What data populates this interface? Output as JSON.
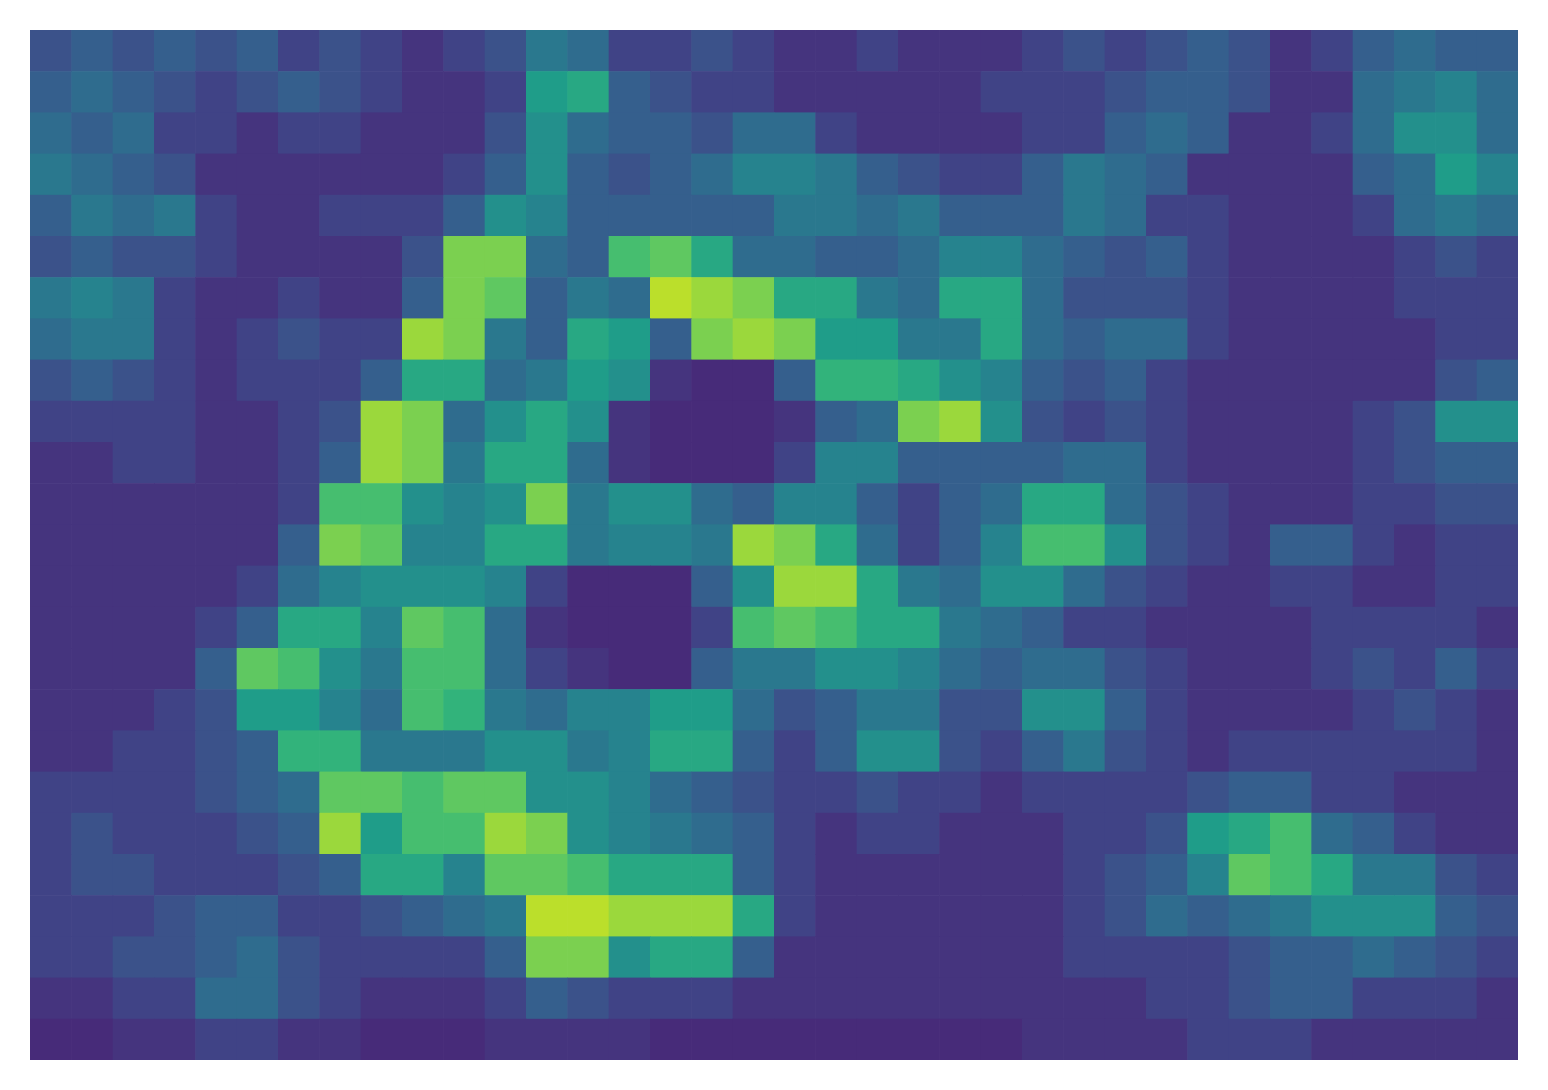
{
  "chart_data": {
    "type": "heatmap",
    "tick_labels": false,
    "color_range": [
      0,
      1
    ],
    "cells": [
      [
        0.25,
        0.3,
        0.25,
        0.3,
        0.25,
        0.3,
        0.2,
        0.25,
        0.2,
        0.15,
        0.2,
        0.25,
        0.4,
        0.35,
        0.2,
        0.2,
        0.25,
        0.2,
        0.15,
        0.15,
        0.2,
        0.15,
        0.15,
        0.15,
        0.2,
        0.25,
        0.2,
        0.25,
        0.3,
        0.25,
        0.15,
        0.2,
        0.3,
        0.35,
        0.3,
        0.3
      ],
      [
        0.3,
        0.35,
        0.3,
        0.25,
        0.2,
        0.25,
        0.3,
        0.25,
        0.2,
        0.15,
        0.15,
        0.2,
        0.55,
        0.6,
        0.3,
        0.25,
        0.2,
        0.2,
        0.15,
        0.15,
        0.15,
        0.15,
        0.15,
        0.2,
        0.2,
        0.2,
        0.25,
        0.3,
        0.3,
        0.25,
        0.15,
        0.15,
        0.35,
        0.4,
        0.45,
        0.35
      ],
      [
        0.35,
        0.3,
        0.35,
        0.2,
        0.2,
        0.15,
        0.2,
        0.2,
        0.15,
        0.15,
        0.15,
        0.25,
        0.5,
        0.35,
        0.3,
        0.3,
        0.25,
        0.35,
        0.35,
        0.2,
        0.15,
        0.15,
        0.15,
        0.15,
        0.2,
        0.2,
        0.3,
        0.35,
        0.3,
        0.15,
        0.15,
        0.2,
        0.35,
        0.5,
        0.5,
        0.35
      ],
      [
        0.4,
        0.35,
        0.3,
        0.25,
        0.15,
        0.15,
        0.15,
        0.15,
        0.15,
        0.15,
        0.2,
        0.3,
        0.5,
        0.3,
        0.25,
        0.3,
        0.35,
        0.45,
        0.45,
        0.4,
        0.3,
        0.25,
        0.2,
        0.2,
        0.3,
        0.4,
        0.35,
        0.3,
        0.15,
        0.15,
        0.15,
        0.15,
        0.3,
        0.35,
        0.55,
        0.45
      ],
      [
        0.3,
        0.4,
        0.35,
        0.4,
        0.2,
        0.15,
        0.15,
        0.2,
        0.2,
        0.2,
        0.3,
        0.5,
        0.45,
        0.3,
        0.3,
        0.3,
        0.3,
        0.3,
        0.4,
        0.4,
        0.35,
        0.4,
        0.3,
        0.3,
        0.3,
        0.4,
        0.35,
        0.2,
        0.2,
        0.15,
        0.15,
        0.15,
        0.2,
        0.35,
        0.4,
        0.35
      ],
      [
        0.25,
        0.3,
        0.25,
        0.25,
        0.2,
        0.15,
        0.15,
        0.15,
        0.15,
        0.25,
        0.8,
        0.8,
        0.35,
        0.3,
        0.7,
        0.75,
        0.6,
        0.35,
        0.35,
        0.3,
        0.3,
        0.35,
        0.45,
        0.45,
        0.35,
        0.3,
        0.25,
        0.3,
        0.2,
        0.15,
        0.15,
        0.15,
        0.15,
        0.2,
        0.25,
        0.2
      ],
      [
        0.4,
        0.45,
        0.4,
        0.2,
        0.15,
        0.15,
        0.2,
        0.15,
        0.15,
        0.3,
        0.8,
        0.75,
        0.3,
        0.4,
        0.35,
        0.9,
        0.85,
        0.8,
        0.6,
        0.6,
        0.4,
        0.35,
        0.6,
        0.6,
        0.35,
        0.25,
        0.25,
        0.25,
        0.2,
        0.15,
        0.15,
        0.15,
        0.15,
        0.2,
        0.2,
        0.2
      ],
      [
        0.35,
        0.4,
        0.4,
        0.2,
        0.15,
        0.2,
        0.25,
        0.2,
        0.2,
        0.85,
        0.8,
        0.4,
        0.3,
        0.6,
        0.55,
        0.3,
        0.8,
        0.85,
        0.8,
        0.55,
        0.55,
        0.4,
        0.4,
        0.6,
        0.35,
        0.3,
        0.35,
        0.35,
        0.2,
        0.15,
        0.15,
        0.15,
        0.15,
        0.15,
        0.2,
        0.2
      ],
      [
        0.25,
        0.3,
        0.25,
        0.2,
        0.15,
        0.2,
        0.2,
        0.2,
        0.3,
        0.6,
        0.6,
        0.35,
        0.4,
        0.55,
        0.5,
        0.15,
        0.12,
        0.12,
        0.3,
        0.65,
        0.65,
        0.6,
        0.5,
        0.45,
        0.3,
        0.25,
        0.3,
        0.2,
        0.15,
        0.15,
        0.15,
        0.15,
        0.15,
        0.15,
        0.25,
        0.3
      ],
      [
        0.2,
        0.2,
        0.2,
        0.2,
        0.15,
        0.15,
        0.2,
        0.25,
        0.85,
        0.8,
        0.35,
        0.5,
        0.6,
        0.5,
        0.15,
        0.12,
        0.12,
        0.12,
        0.15,
        0.3,
        0.35,
        0.8,
        0.85,
        0.5,
        0.25,
        0.2,
        0.25,
        0.2,
        0.15,
        0.15,
        0.15,
        0.15,
        0.2,
        0.25,
        0.5,
        0.5
      ],
      [
        0.15,
        0.15,
        0.2,
        0.2,
        0.15,
        0.15,
        0.2,
        0.3,
        0.85,
        0.8,
        0.4,
        0.6,
        0.6,
        0.35,
        0.15,
        0.12,
        0.12,
        0.12,
        0.2,
        0.45,
        0.45,
        0.3,
        0.3,
        0.3,
        0.3,
        0.35,
        0.35,
        0.2,
        0.15,
        0.15,
        0.15,
        0.15,
        0.2,
        0.25,
        0.3,
        0.3
      ],
      [
        0.15,
        0.15,
        0.15,
        0.15,
        0.15,
        0.15,
        0.2,
        0.7,
        0.7,
        0.5,
        0.45,
        0.5,
        0.8,
        0.4,
        0.5,
        0.5,
        0.35,
        0.3,
        0.45,
        0.45,
        0.3,
        0.2,
        0.3,
        0.35,
        0.6,
        0.6,
        0.35,
        0.25,
        0.2,
        0.15,
        0.15,
        0.15,
        0.2,
        0.2,
        0.25,
        0.25
      ],
      [
        0.15,
        0.15,
        0.15,
        0.15,
        0.15,
        0.15,
        0.3,
        0.8,
        0.75,
        0.45,
        0.45,
        0.6,
        0.6,
        0.4,
        0.45,
        0.45,
        0.4,
        0.85,
        0.8,
        0.6,
        0.35,
        0.2,
        0.3,
        0.45,
        0.7,
        0.7,
        0.5,
        0.25,
        0.2,
        0.15,
        0.3,
        0.3,
        0.2,
        0.15,
        0.2,
        0.2
      ],
      [
        0.15,
        0.15,
        0.15,
        0.15,
        0.15,
        0.2,
        0.35,
        0.45,
        0.5,
        0.5,
        0.5,
        0.45,
        0.2,
        0.12,
        0.12,
        0.12,
        0.3,
        0.5,
        0.85,
        0.85,
        0.6,
        0.4,
        0.35,
        0.5,
        0.5,
        0.35,
        0.25,
        0.2,
        0.15,
        0.15,
        0.2,
        0.2,
        0.15,
        0.15,
        0.2,
        0.2
      ],
      [
        0.15,
        0.15,
        0.15,
        0.15,
        0.2,
        0.3,
        0.6,
        0.6,
        0.45,
        0.75,
        0.7,
        0.35,
        0.15,
        0.12,
        0.12,
        0.12,
        0.2,
        0.7,
        0.75,
        0.7,
        0.6,
        0.6,
        0.4,
        0.35,
        0.3,
        0.2,
        0.2,
        0.15,
        0.15,
        0.15,
        0.15,
        0.2,
        0.2,
        0.2,
        0.2,
        0.15
      ],
      [
        0.15,
        0.15,
        0.15,
        0.15,
        0.3,
        0.75,
        0.7,
        0.5,
        0.4,
        0.7,
        0.7,
        0.35,
        0.2,
        0.15,
        0.12,
        0.12,
        0.3,
        0.4,
        0.4,
        0.5,
        0.5,
        0.45,
        0.35,
        0.3,
        0.35,
        0.35,
        0.25,
        0.2,
        0.15,
        0.15,
        0.15,
        0.2,
        0.25,
        0.2,
        0.3,
        0.2
      ],
      [
        0.15,
        0.15,
        0.15,
        0.2,
        0.25,
        0.55,
        0.55,
        0.45,
        0.35,
        0.7,
        0.65,
        0.4,
        0.35,
        0.45,
        0.45,
        0.55,
        0.55,
        0.35,
        0.25,
        0.3,
        0.4,
        0.4,
        0.25,
        0.25,
        0.5,
        0.5,
        0.3,
        0.2,
        0.15,
        0.15,
        0.15,
        0.15,
        0.2,
        0.25,
        0.2,
        0.15
      ],
      [
        0.15,
        0.15,
        0.2,
        0.2,
        0.25,
        0.3,
        0.65,
        0.65,
        0.4,
        0.4,
        0.4,
        0.5,
        0.5,
        0.4,
        0.45,
        0.6,
        0.6,
        0.3,
        0.2,
        0.3,
        0.5,
        0.5,
        0.25,
        0.2,
        0.3,
        0.4,
        0.25,
        0.2,
        0.15,
        0.2,
        0.2,
        0.2,
        0.2,
        0.2,
        0.2,
        0.15
      ],
      [
        0.2,
        0.2,
        0.2,
        0.2,
        0.25,
        0.3,
        0.35,
        0.75,
        0.75,
        0.7,
        0.75,
        0.75,
        0.5,
        0.5,
        0.45,
        0.35,
        0.3,
        0.25,
        0.2,
        0.2,
        0.25,
        0.2,
        0.2,
        0.15,
        0.2,
        0.2,
        0.2,
        0.2,
        0.25,
        0.3,
        0.3,
        0.2,
        0.2,
        0.15,
        0.15,
        0.15
      ],
      [
        0.2,
        0.25,
        0.2,
        0.2,
        0.2,
        0.25,
        0.3,
        0.85,
        0.55,
        0.7,
        0.7,
        0.85,
        0.8,
        0.5,
        0.45,
        0.4,
        0.35,
        0.3,
        0.2,
        0.15,
        0.2,
        0.2,
        0.15,
        0.15,
        0.15,
        0.2,
        0.2,
        0.25,
        0.55,
        0.6,
        0.7,
        0.35,
        0.3,
        0.2,
        0.15,
        0.15
      ],
      [
        0.2,
        0.25,
        0.25,
        0.2,
        0.2,
        0.2,
        0.25,
        0.3,
        0.6,
        0.6,
        0.45,
        0.75,
        0.75,
        0.7,
        0.6,
        0.6,
        0.6,
        0.3,
        0.2,
        0.15,
        0.15,
        0.15,
        0.15,
        0.15,
        0.15,
        0.2,
        0.25,
        0.3,
        0.45,
        0.75,
        0.7,
        0.6,
        0.4,
        0.4,
        0.25,
        0.2
      ],
      [
        0.2,
        0.2,
        0.2,
        0.25,
        0.3,
        0.3,
        0.2,
        0.2,
        0.25,
        0.3,
        0.35,
        0.4,
        0.9,
        0.9,
        0.85,
        0.85,
        0.85,
        0.6,
        0.2,
        0.15,
        0.15,
        0.15,
        0.15,
        0.15,
        0.15,
        0.2,
        0.25,
        0.35,
        0.3,
        0.35,
        0.4,
        0.5,
        0.5,
        0.5,
        0.3,
        0.25
      ],
      [
        0.2,
        0.2,
        0.25,
        0.25,
        0.3,
        0.35,
        0.25,
        0.2,
        0.2,
        0.2,
        0.2,
        0.3,
        0.8,
        0.8,
        0.5,
        0.6,
        0.6,
        0.3,
        0.15,
        0.15,
        0.15,
        0.15,
        0.15,
        0.15,
        0.15,
        0.2,
        0.2,
        0.2,
        0.2,
        0.25,
        0.3,
        0.3,
        0.35,
        0.3,
        0.25,
        0.2
      ],
      [
        0.15,
        0.15,
        0.2,
        0.2,
        0.35,
        0.35,
        0.25,
        0.2,
        0.15,
        0.15,
        0.15,
        0.2,
        0.3,
        0.25,
        0.2,
        0.2,
        0.2,
        0.15,
        0.15,
        0.15,
        0.15,
        0.15,
        0.15,
        0.15,
        0.15,
        0.15,
        0.15,
        0.2,
        0.2,
        0.25,
        0.3,
        0.3,
        0.2,
        0.2,
        0.2,
        0.15
      ],
      [
        0.12,
        0.12,
        0.15,
        0.15,
        0.2,
        0.2,
        0.15,
        0.15,
        0.12,
        0.12,
        0.12,
        0.15,
        0.15,
        0.15,
        0.15,
        0.12,
        0.12,
        0.12,
        0.12,
        0.12,
        0.12,
        0.12,
        0.12,
        0.12,
        0.15,
        0.15,
        0.15,
        0.15,
        0.2,
        0.2,
        0.2,
        0.15,
        0.15,
        0.15,
        0.15,
        0.15
      ]
    ]
  }
}
